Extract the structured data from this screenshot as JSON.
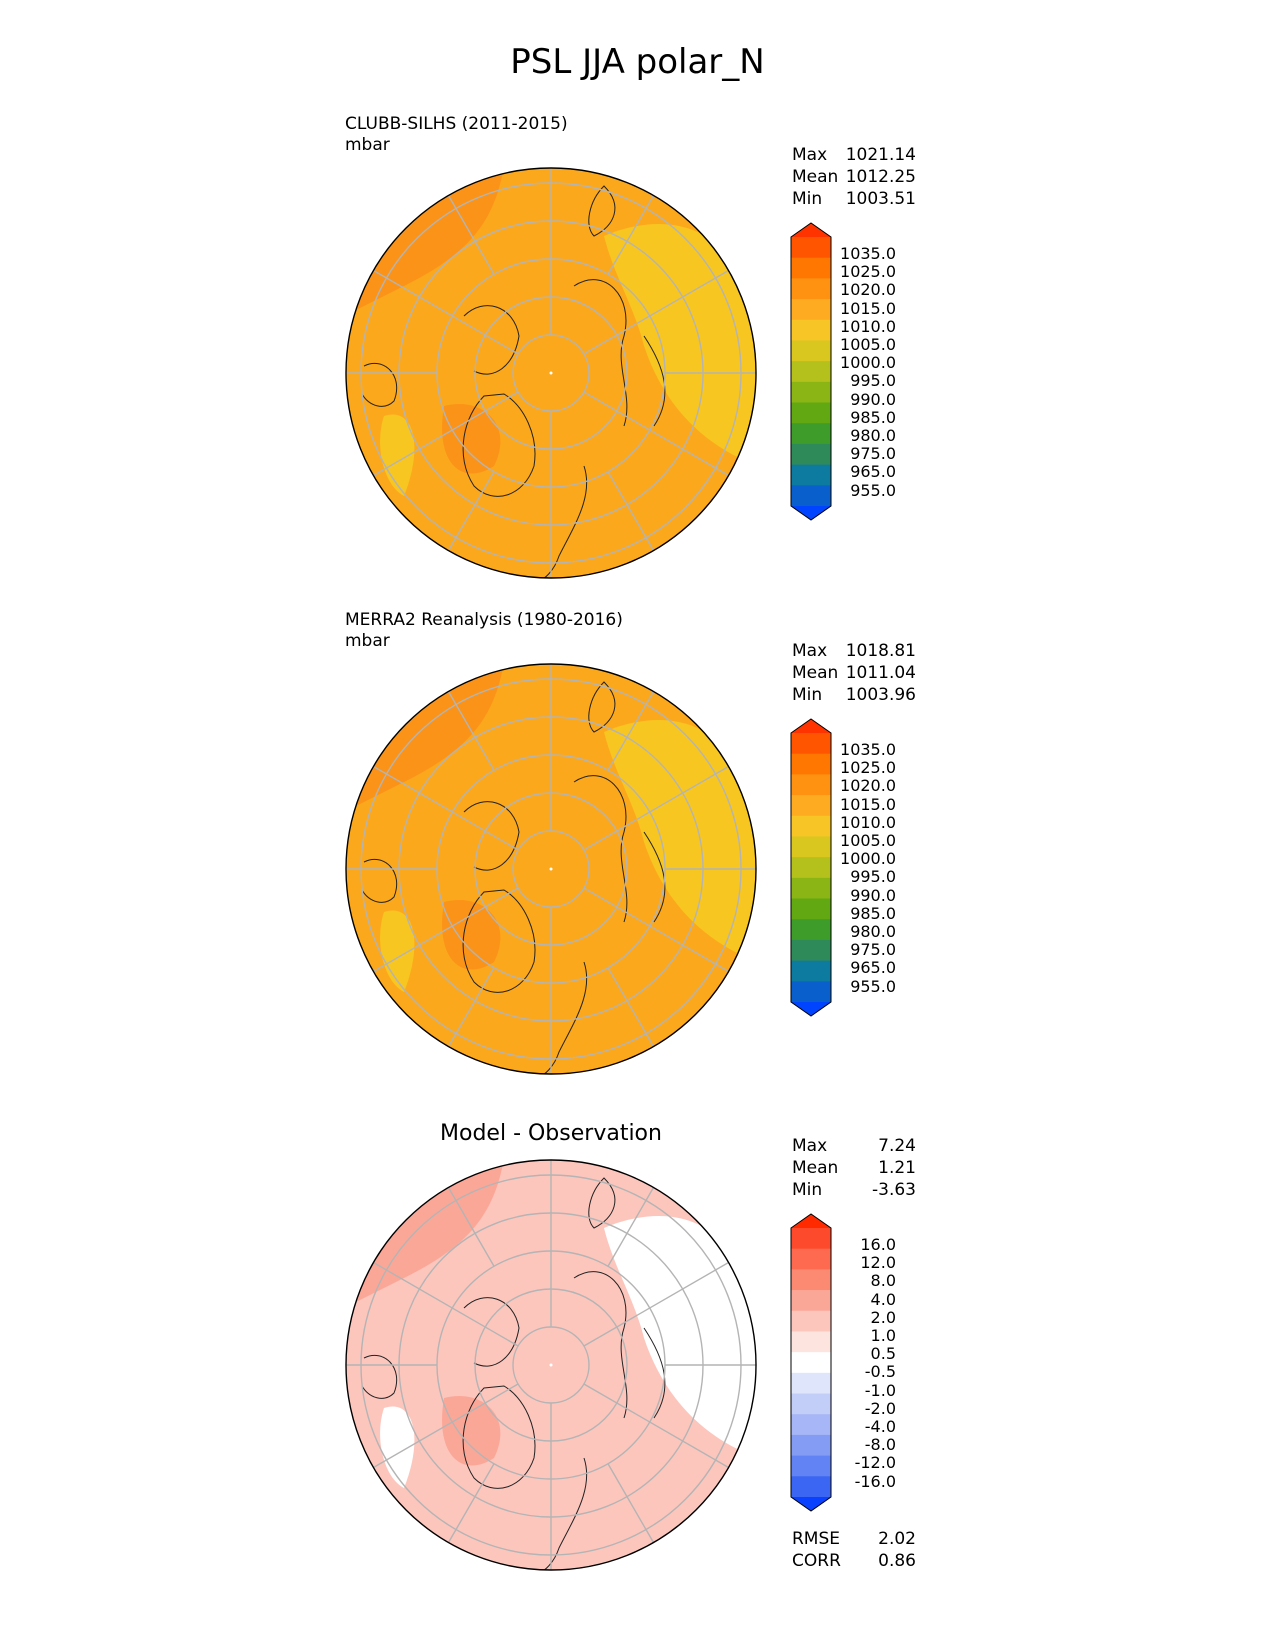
{
  "title": "PSL JJA polar_N",
  "panels": [
    {
      "id": "test",
      "title": "CLUBB-SILHS (2011-2015)",
      "units": "mbar",
      "stats": [
        {
          "label": "Max",
          "value": "1021.14"
        },
        {
          "label": "Mean",
          "value": "1012.25"
        },
        {
          "label": "Min",
          "value": "1003.51"
        }
      ],
      "colorbar": {
        "ticks": [
          "1035.0",
          "1025.0",
          "1020.0",
          "1015.0",
          "1010.0",
          "1005.0",
          "1000.0",
          "995.0",
          "990.0",
          "985.0",
          "980.0",
          "975.0",
          "965.0",
          "955.0"
        ],
        "colors": [
          "#ff3300",
          "#ff5500",
          "#ff7700",
          "#ff9311",
          "#ffab22",
          "#f7c525",
          "#d9c61f",
          "#b4c01c",
          "#8ab515",
          "#61a812",
          "#3e9c2a",
          "#2f8a5a",
          "#0d7aa0",
          "#0960cc",
          "#0044ff"
        ]
      },
      "field_colors": {
        "base": "#fca81c",
        "high": "#fb9318",
        "higher": "#f9811a",
        "low": "#f7c620",
        "lower": "#d7c728"
      }
    },
    {
      "id": "reference",
      "title": "MERRA2 Reanalysis (1980-2016)",
      "units": "mbar",
      "stats": [
        {
          "label": "Max",
          "value": "1018.81"
        },
        {
          "label": "Mean",
          "value": "1011.04"
        },
        {
          "label": "Min",
          "value": "1003.96"
        }
      ],
      "colorbar": {
        "ticks": [
          "1035.0",
          "1025.0",
          "1020.0",
          "1015.0",
          "1010.0",
          "1005.0",
          "1000.0",
          "995.0",
          "990.0",
          "985.0",
          "980.0",
          "975.0",
          "965.0",
          "955.0"
        ],
        "colors": [
          "#ff3300",
          "#ff5500",
          "#ff7700",
          "#ff9311",
          "#ffab22",
          "#f7c525",
          "#d9c61f",
          "#b4c01c",
          "#8ab515",
          "#61a812",
          "#3e9c2a",
          "#2f8a5a",
          "#0d7aa0",
          "#0960cc",
          "#0044ff"
        ]
      },
      "field_colors": {
        "base": "#fca81c",
        "high": "#fb9318",
        "higher": "#f9811a",
        "low": "#f7c620",
        "lower": "#d7c728"
      }
    },
    {
      "id": "difference",
      "title": "Model - Observation",
      "units": "",
      "stats": [
        {
          "label": "Max",
          "value": "7.24"
        },
        {
          "label": "Mean",
          "value": "1.21"
        },
        {
          "label": "Min",
          "value": "-3.63"
        }
      ],
      "colorbar": {
        "ticks": [
          "16.0",
          "12.0",
          "8.0",
          "4.0",
          "2.0",
          "1.0",
          "0.5",
          "-0.5",
          "-1.0",
          "-2.0",
          "-4.0",
          "-8.0",
          "-12.0",
          "-16.0"
        ],
        "colors": [
          "#ff2a00",
          "#fe4a2c",
          "#fd6a50",
          "#fc8a72",
          "#fba798",
          "#fcc6bd",
          "#fde4de",
          "#ffffff",
          "#dfe5fb",
          "#c2cdf8",
          "#a6b6f6",
          "#849cf4",
          "#6283f3",
          "#3b65f3",
          "#0a40ff"
        ]
      },
      "field_colors": {
        "base": "#fcc6bd",
        "high": "#fba798",
        "higher": "#fc8a72",
        "low": "#ffffff",
        "lower": "#c2cdf8"
      },
      "extra_stats": [
        {
          "label": "RMSE",
          "value": "2.02"
        },
        {
          "label": "CORR",
          "value": "0.86"
        }
      ]
    }
  ]
}
